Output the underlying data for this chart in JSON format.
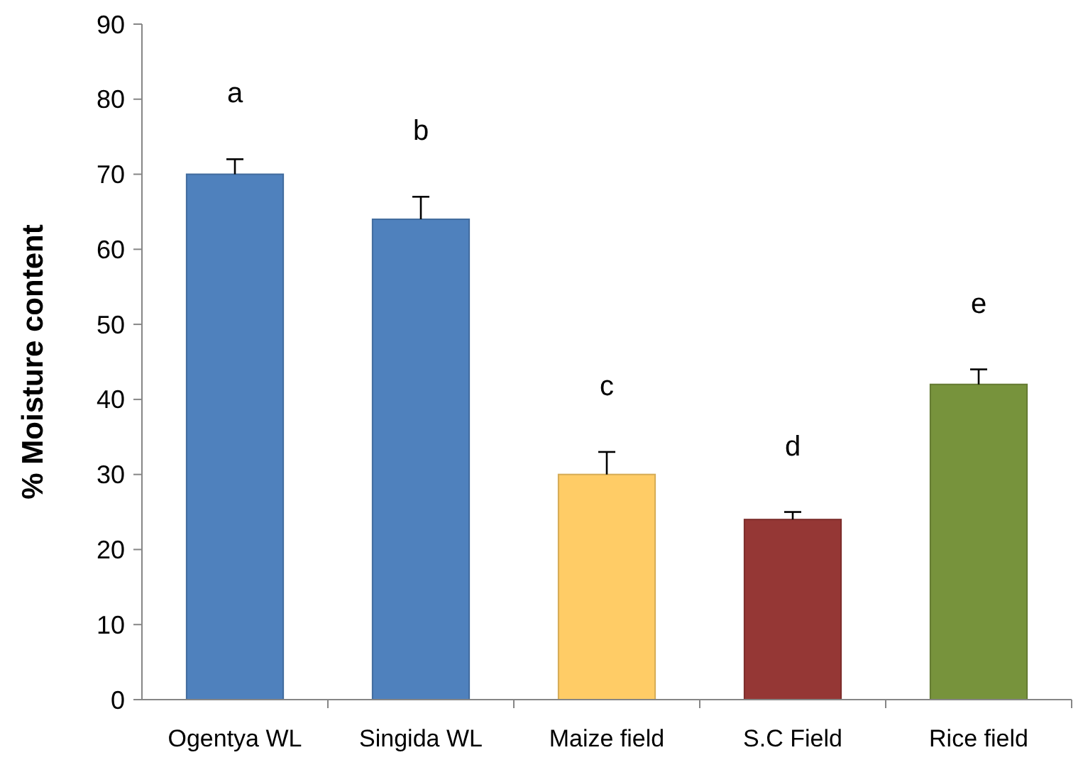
{
  "chart_data": {
    "type": "bar",
    "ylabel": "% Moisture content",
    "categories": [
      "Ogentya WL",
      "Singida WL",
      "Maize field",
      "S.C Field",
      "Rice field"
    ],
    "values": [
      70,
      64,
      30,
      24,
      42
    ],
    "colors": [
      "#4f81bd",
      "#4f81bd",
      "#ffcc66",
      "#953735",
      "#77933c"
    ],
    "errors": [
      2,
      3,
      3,
      1,
      2
    ],
    "ylim": [
      0,
      90
    ],
    "yticks": [
      0,
      10,
      20,
      30,
      40,
      50,
      60,
      70,
      80,
      90
    ],
    "grid": false,
    "annotations": [
      "a",
      "b",
      "c",
      "d",
      "e"
    ]
  }
}
